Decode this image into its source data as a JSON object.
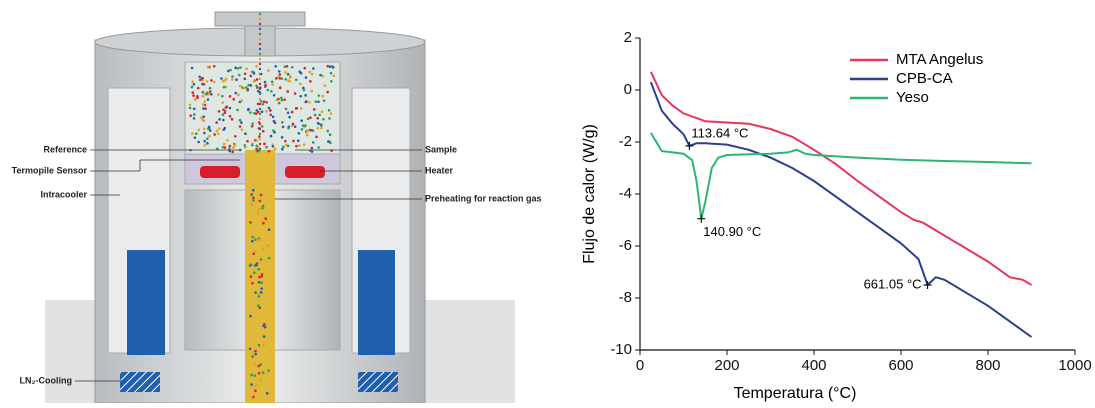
{
  "diagram": {
    "labels": [
      "Reference",
      "Termopile Sensor",
      "Intracooler",
      "Sample",
      "Heater",
      "Preheating for reaction gas",
      "LN₂-Cooling"
    ]
  },
  "chart_data": {
    "type": "line",
    "xlabel": "Temperatura (°C)",
    "ylabel": "Flujo de calor (W/g)",
    "xlim": [
      0,
      1000
    ],
    "xticks": [
      0,
      200,
      400,
      600,
      800,
      1000
    ],
    "ylim": [
      -10,
      2
    ],
    "yticks": [
      -10,
      -8,
      -6,
      -4,
      -2,
      0,
      2
    ],
    "legend": "upper right",
    "series": [
      {
        "name": "MTA Angelus",
        "color": "#e8365a",
        "x": [
          25,
          50,
          75,
          100,
          150,
          200,
          250,
          300,
          350,
          400,
          450,
          500,
          550,
          600,
          630,
          650,
          700,
          750,
          800,
          850,
          880,
          900
        ],
        "values": [
          0.7,
          -0.2,
          -0.6,
          -0.9,
          -1.2,
          -1.25,
          -1.3,
          -1.5,
          -1.8,
          -2.3,
          -2.85,
          -3.5,
          -4.1,
          -4.7,
          -5.0,
          -5.1,
          -5.6,
          -6.1,
          -6.6,
          -7.2,
          -7.3,
          -7.5
        ]
      },
      {
        "name": "CPB-CA",
        "color": "#2b3f8c",
        "x": [
          25,
          50,
          75,
          100,
          113.64,
          130,
          150,
          200,
          250,
          300,
          350,
          400,
          450,
          500,
          550,
          600,
          640,
          661.05,
          680,
          700,
          750,
          800,
          850,
          900
        ],
        "values": [
          0.3,
          -0.8,
          -1.3,
          -1.7,
          -2.15,
          -2.05,
          -2.05,
          -2.1,
          -2.3,
          -2.6,
          -3.0,
          -3.5,
          -4.1,
          -4.7,
          -5.3,
          -5.9,
          -6.5,
          -7.5,
          -7.2,
          -7.3,
          -7.8,
          -8.3,
          -8.9,
          -9.5
        ]
      },
      {
        "name": "Yeso",
        "color": "#2bb673",
        "x": [
          25,
          50,
          75,
          100,
          120,
          130,
          140.9,
          150,
          165,
          180,
          200,
          300,
          340,
          360,
          380,
          400,
          500,
          600,
          700,
          800,
          900
        ],
        "values": [
          -1.65,
          -2.35,
          -2.4,
          -2.45,
          -2.7,
          -3.5,
          -4.95,
          -4.3,
          -3.0,
          -2.6,
          -2.5,
          -2.45,
          -2.4,
          -2.3,
          -2.45,
          -2.5,
          -2.6,
          -2.68,
          -2.73,
          -2.77,
          -2.82
        ]
      }
    ],
    "annotations": [
      {
        "text": "113.64 °C",
        "x": 113.64,
        "y": -2.15
      },
      {
        "text": "140.90 °C",
        "x": 140.9,
        "y": -4.95
      },
      {
        "text": "661.05 °C",
        "x": 661.05,
        "y": -7.5
      }
    ]
  }
}
